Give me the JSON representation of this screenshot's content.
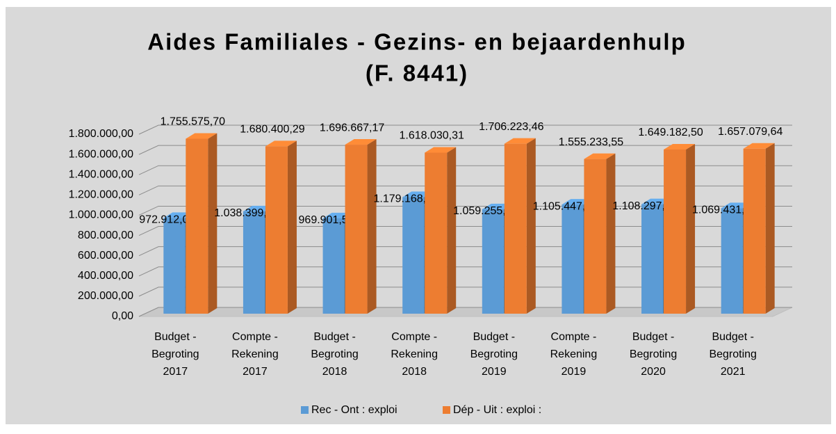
{
  "chart_data": {
    "type": "bar3d",
    "title": [
      "Aides Familiales - Gezins- en bejaardenhulp",
      "(F. 8441)"
    ],
    "categories": [
      [
        "Budget -",
        "Begroting",
        "2017"
      ],
      [
        "Compte -",
        "Rekening",
        "2017"
      ],
      [
        "Budget -",
        "Begroting",
        "2018"
      ],
      [
        "Compte -",
        "Rekening",
        "2018"
      ],
      [
        "Budget -",
        "Begroting",
        "2019"
      ],
      [
        "Compte -",
        "Rekening",
        "2019"
      ],
      [
        "Budget -",
        "Begroting",
        "2020"
      ],
      [
        "Budget -",
        "Begroting",
        "2021"
      ]
    ],
    "series": [
      {
        "name": "Rec - Ont : exploi",
        "color": "#5b9bd5",
        "values": [
          972912.0,
          1038399.69,
          969901.55,
          1179168.51,
          1059255.62,
          1105447.43,
          1108297.16,
          1069431.26
        ],
        "value_labels": [
          "972.912,00",
          "1.038.399,69",
          "969.901,55",
          "1.179.168,51",
          "1.059.255,62",
          "1.105.447,43",
          "1.108.297,16",
          "1.069.431,26"
        ]
      },
      {
        "name": "Dép - Uit : exploi :",
        "color": "#ed7d31",
        "values": [
          1755575.7,
          1680400.29,
          1696667.17,
          1618030.31,
          1706223.46,
          1555233.55,
          1649182.5,
          1657079.64
        ],
        "value_labels": [
          "1.755.575,70",
          "1.680.400,29",
          "1.696.667,17",
          "1.618.030,31",
          "1.706.223,46",
          "1.555.233,55",
          "1.649.182,50",
          "1.657.079,64"
        ]
      }
    ],
    "ylim": [
      0,
      1800000
    ],
    "yticks": [
      {
        "value": 0,
        "label": "0,00"
      },
      {
        "value": 200000,
        "label": "200.000,00"
      },
      {
        "value": 400000,
        "label": "400.000,00"
      },
      {
        "value": 600000,
        "label": "600.000,00"
      },
      {
        "value": 800000,
        "label": "800.000,00"
      },
      {
        "value": 1000000,
        "label": "1.000.000,00"
      },
      {
        "value": 1200000,
        "label": "1.200.000,00"
      },
      {
        "value": 1400000,
        "label": "1.400.000,00"
      },
      {
        "value": 1600000,
        "label": "1.600.000,00"
      },
      {
        "value": 1800000,
        "label": "1.800.000,00"
      }
    ],
    "grid": true,
    "legend": "bottom"
  }
}
